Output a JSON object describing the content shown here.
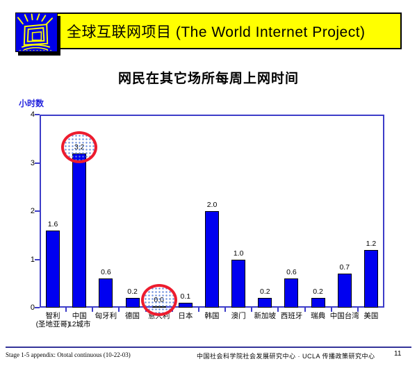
{
  "header": {
    "title": "全球互联网项目 (The World Internet Project)",
    "logo_name": "world-internet-project-logo",
    "banner_color": "#ffff00",
    "logo_color": "#0000e8"
  },
  "slide_title": "网民在其它场所每周上网时间",
  "chart_data": {
    "type": "bar",
    "title": "网民在其它场所每周上网时间",
    "ylabel": "小时数",
    "xlabel": "",
    "ylim": [
      0,
      4
    ],
    "yticks": [
      0,
      1,
      2,
      3,
      4
    ],
    "grid": false,
    "legend": "none",
    "bar_color": "#0000f0",
    "axis_color": "#3c3cc8",
    "highlight_color": "#ed1c2e",
    "categories": [
      "智利\n(圣地亚哥)",
      "中国\n12城市",
      "匈牙利",
      "德国",
      "意大利",
      "日本",
      "韩国",
      "澳门",
      "新加坡",
      "西班牙",
      "瑞典",
      "中国台湾",
      "美国"
    ],
    "values": [
      1.6,
      3.2,
      0.6,
      0.2,
      0.0,
      0.1,
      2.0,
      1.0,
      0.2,
      0.6,
      0.2,
      0.7,
      1.2
    ],
    "value_labels": [
      "1.6",
      "3.2",
      "0.6",
      "0.2",
      "0.0",
      "0.1",
      "2.0",
      "1.0",
      "0.2",
      "0.6",
      "0.2",
      "0.7",
      "1.2"
    ],
    "highlights": [
      {
        "category": "中国12城市",
        "value": "3.2",
        "index": 1
      },
      {
        "category": "意大利",
        "value": "0.0",
        "index": 4
      }
    ]
  },
  "footer": {
    "left_note": "Stage 1-5 appendix: Ototal continuous (10-22-03)",
    "credit": "中国社会科学院社会发展研究中心 · UCLA 传播政策研究中心",
    "page_number": "11"
  }
}
